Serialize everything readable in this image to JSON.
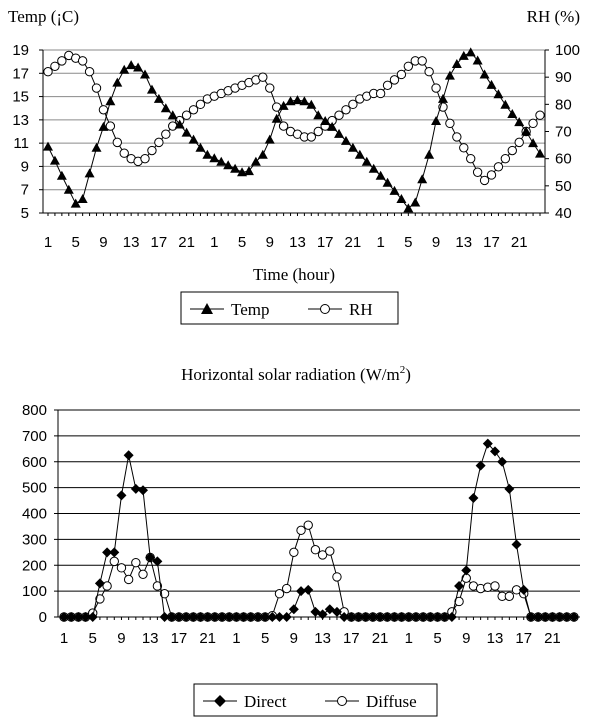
{
  "chart_data": [
    {
      "type": "line",
      "xlabel": "Time (hour)",
      "y_left_label": "Temp (¡C)",
      "y_right_label": "RH (%)",
      "y_left_lim": [
        5,
        19
      ],
      "y_left_ticks": [
        5,
        7,
        9,
        11,
        13,
        15,
        17,
        19
      ],
      "y_right_lim": [
        40,
        100
      ],
      "y_right_ticks": [
        40,
        50,
        60,
        70,
        80,
        90,
        100
      ],
      "x": [
        1,
        2,
        3,
        4,
        5,
        6,
        7,
        8,
        9,
        10,
        11,
        12,
        13,
        14,
        15,
        16,
        17,
        18,
        19,
        20,
        21,
        22,
        23,
        24,
        1,
        2,
        3,
        4,
        5,
        6,
        7,
        8,
        9,
        10,
        11,
        12,
        13,
        14,
        15,
        16,
        17,
        18,
        19,
        20,
        21,
        22,
        23,
        24,
        1,
        2,
        3,
        4,
        5,
        6,
        7,
        8,
        9,
        10,
        11,
        12,
        13,
        14,
        15,
        16,
        17,
        18,
        19,
        20,
        21,
        22,
        23,
        24
      ],
      "x_tick_labels": [
        "1",
        "5",
        "9",
        "13",
        "17",
        "21",
        "1",
        "5",
        "9",
        "13",
        "17",
        "21",
        "1",
        "5",
        "9",
        "13",
        "17",
        "21"
      ],
      "grid": true,
      "legend_position": "bottom",
      "legend": [
        "Temp",
        "RH"
      ],
      "series": [
        {
          "name": "Temp",
          "axis": "left",
          "marker": "filled-triangle",
          "values": [
            10.7,
            9.5,
            8.2,
            7.0,
            5.8,
            6.2,
            8.4,
            10.6,
            12.4,
            14.6,
            16.2,
            17.3,
            17.7,
            17.5,
            16.9,
            15.6,
            14.8,
            14.0,
            13.4,
            12.6,
            11.9,
            11.3,
            10.6,
            10.0,
            9.7,
            9.4,
            9.1,
            8.8,
            8.5,
            8.6,
            9.4,
            10.0,
            11.3,
            13.1,
            14.2,
            14.6,
            14.7,
            14.6,
            14.3,
            13.4,
            12.9,
            12.4,
            11.8,
            11.2,
            10.6,
            10.0,
            9.4,
            8.8,
            8.2,
            7.6,
            6.9,
            6.2,
            5.4,
            5.9,
            7.9,
            10.0,
            12.9,
            14.8,
            16.8,
            17.8,
            18.5,
            18.8,
            18.1,
            16.9,
            16.0,
            15.2,
            14.3,
            13.5,
            12.8,
            12.0,
            11.0,
            10.1
          ]
        },
        {
          "name": "RH",
          "axis": "right",
          "marker": "open-circle",
          "values": [
            92,
            94,
            96,
            98,
            97,
            96,
            92,
            86,
            78,
            72,
            66,
            62,
            60,
            59,
            60,
            63,
            66,
            69,
            72,
            74,
            76,
            78,
            80,
            82,
            83,
            84,
            85,
            86,
            87,
            88,
            89,
            90,
            86,
            79,
            72,
            70,
            69,
            68,
            68,
            70,
            72,
            74,
            76,
            78,
            80,
            82,
            83,
            84,
            84,
            87,
            89,
            91,
            94,
            96,
            96,
            92,
            86,
            79,
            73,
            68,
            64,
            60,
            55,
            52,
            54,
            57,
            60,
            63,
            66,
            70,
            73,
            76
          ]
        }
      ]
    },
    {
      "type": "line",
      "title": "Horizontal solar radiation (W/m²)",
      "ylim": [
        0,
        800
      ],
      "y_ticks": [
        0,
        100,
        200,
        300,
        400,
        500,
        600,
        700,
        800
      ],
      "x": [
        1,
        2,
        3,
        4,
        5,
        6,
        7,
        8,
        9,
        10,
        11,
        12,
        13,
        14,
        15,
        16,
        17,
        18,
        19,
        20,
        21,
        22,
        23,
        24,
        1,
        2,
        3,
        4,
        5,
        6,
        7,
        8,
        9,
        10,
        11,
        12,
        13,
        14,
        15,
        16,
        17,
        18,
        19,
        20,
        21,
        22,
        23,
        24,
        1,
        2,
        3,
        4,
        5,
        6,
        7,
        8,
        9,
        10,
        11,
        12,
        13,
        14,
        15,
        16,
        17,
        18,
        19,
        20,
        21,
        22,
        23,
        24
      ],
      "x_tick_labels": [
        "1",
        "5",
        "9",
        "13",
        "17",
        "21",
        "1",
        "5",
        "9",
        "13",
        "17",
        "21",
        "1",
        "5",
        "9",
        "13",
        "17",
        "21"
      ],
      "grid": true,
      "legend_position": "bottom",
      "legend": [
        "Direct",
        "Diffuse"
      ],
      "series": [
        {
          "name": "Direct",
          "marker": "filled-diamond",
          "values": [
            0,
            0,
            0,
            0,
            0,
            130,
            250,
            250,
            470,
            625,
            495,
            490,
            230,
            215,
            0,
            0,
            0,
            0,
            0,
            0,
            0,
            0,
            0,
            0,
            0,
            0,
            0,
            0,
            0,
            0,
            0,
            0,
            30,
            100,
            105,
            20,
            10,
            30,
            20,
            0,
            0,
            0,
            0,
            0,
            0,
            0,
            0,
            0,
            0,
            0,
            0,
            0,
            0,
            0,
            0,
            120,
            180,
            460,
            585,
            670,
            640,
            600,
            495,
            280,
            105,
            0,
            0,
            0,
            0,
            0,
            0,
            0
          ]
        },
        {
          "name": "Diffuse",
          "marker": "open-circle",
          "values": [
            0,
            0,
            0,
            0,
            15,
            70,
            120,
            215,
            190,
            145,
            210,
            165,
            230,
            120,
            90,
            0,
            0,
            0,
            0,
            0,
            0,
            0,
            0,
            0,
            0,
            0,
            0,
            0,
            0,
            5,
            90,
            110,
            250,
            335,
            355,
            260,
            240,
            255,
            155,
            20,
            0,
            0,
            0,
            0,
            0,
            0,
            0,
            0,
            0,
            0,
            0,
            0,
            0,
            0,
            20,
            60,
            150,
            120,
            110,
            115,
            120,
            80,
            80,
            105,
            90,
            0,
            0,
            0,
            0,
            0,
            0,
            0
          ]
        }
      ]
    }
  ]
}
